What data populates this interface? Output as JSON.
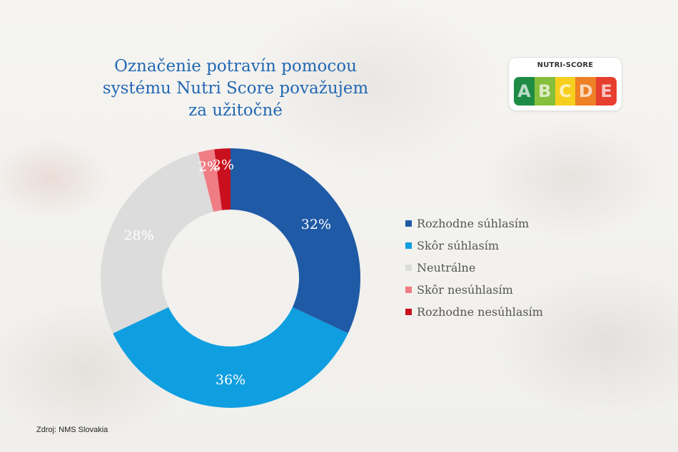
{
  "title_lines": [
    "Označenie potravín pomocou",
    "systému Nutri Score považujem",
    "za užitočné"
  ],
  "logo": {
    "text": "NUTRI-SCORE",
    "grades": [
      {
        "letter": "A",
        "color": "#1e8c45"
      },
      {
        "letter": "B",
        "color": "#86bf3b"
      },
      {
        "letter": "C",
        "color": "#f7cf1e"
      },
      {
        "letter": "D",
        "color": "#ee8026"
      },
      {
        "letter": "E",
        "color": "#e63e2f"
      }
    ]
  },
  "chart_data": {
    "type": "donut",
    "title": "Označenie potravín pomocou systému Nutri Score považujem za užitočné",
    "legend_position": "right",
    "slices": [
      {
        "label": "Rozhodne súhlasím",
        "value": 32,
        "display": "32%",
        "color": "#1f5aa6"
      },
      {
        "label": "Skôr súhlasím",
        "value": 36,
        "display": "36%",
        "color": "#0f9ee0"
      },
      {
        "label": "Neutrálne",
        "value": 28,
        "display": "28%",
        "color": "#dcdcdc"
      },
      {
        "label": "Skôr nesúhlasím",
        "value": 2,
        "display": "2%",
        "color": "#f07c84"
      },
      {
        "label": "Rozhodne nesúhlasím",
        "value": 2,
        "display": "2%",
        "color": "#c8101e"
      }
    ]
  },
  "source": "Zdroj: NMS Slovakia"
}
